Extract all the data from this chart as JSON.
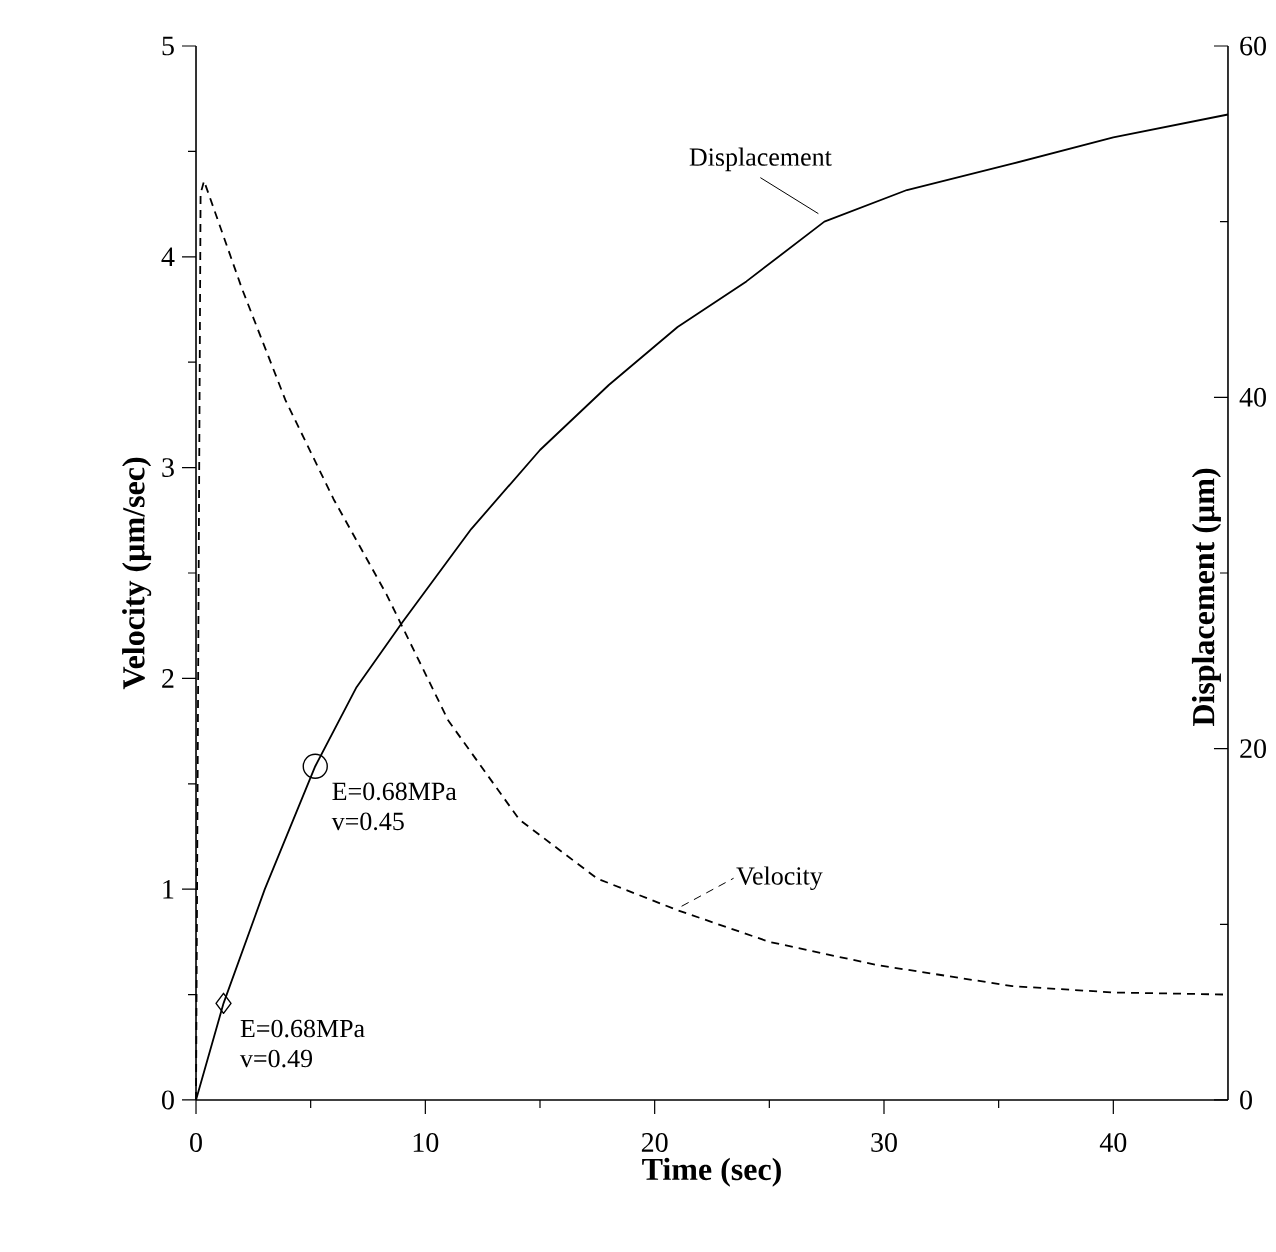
{
  "chart_data": {
    "type": "line",
    "xlabel": "Time (sec)",
    "ylabel": "Velocity (µm/sec)",
    "y2label": "Displacement (µm)",
    "xlim": [
      0,
      45
    ],
    "xticks": [
      0,
      10,
      20,
      30,
      40
    ],
    "ylim": [
      0,
      5
    ],
    "yticks": [
      0,
      1,
      2,
      3,
      4,
      5
    ],
    "y2lim": [
      0,
      60
    ],
    "y2ticks": [
      0,
      20,
      40,
      60
    ],
    "grid": false,
    "series": [
      {
        "name": "Velocity",
        "color": "#000000",
        "line_style": "dashed",
        "marker": "none",
        "x": [
          0,
          0.2,
          0.35,
          2,
          3.9,
          6,
          8.3,
          11,
          14.1,
          17.5,
          21,
          25,
          29.7,
          35.6,
          40,
          45
        ],
        "values": [
          0,
          4.3,
          4.36,
          3.85,
          3.32,
          2.85,
          2.4,
          1.8,
          1.33,
          1.05,
          0.9,
          0.75,
          0.64,
          0.54,
          0.51,
          0.5
        ]
      },
      {
        "name": "Displacement",
        "axis": "y2",
        "color": "#000000",
        "line_style": "solid",
        "marker": "none",
        "x": [
          0,
          1.2,
          3,
          5.2,
          7,
          9,
          12,
          15,
          18,
          21,
          24,
          27.4,
          31,
          35.6,
          40,
          45
        ],
        "values": [
          0,
          5.5,
          12,
          19,
          23.5,
          27.2,
          32.5,
          37,
          40.7,
          44,
          46.6,
          50,
          51.8,
          53.3,
          54.8,
          56.1
        ]
      },
      {
        "type": "scatter",
        "axis": "y2",
        "color": "#000000",
        "marker": "circle",
        "x": [
          5.2
        ],
        "values": [
          19
        ]
      },
      {
        "type": "scatter",
        "axis": "y2",
        "color": "#000000",
        "marker": "diamond",
        "x": [
          1.2
        ],
        "values": [
          5.5
        ]
      }
    ],
    "annotations": [
      "E=0.68MPa",
      "v=0.45",
      "E=0.68MPa",
      "v=0.49"
    ]
  }
}
